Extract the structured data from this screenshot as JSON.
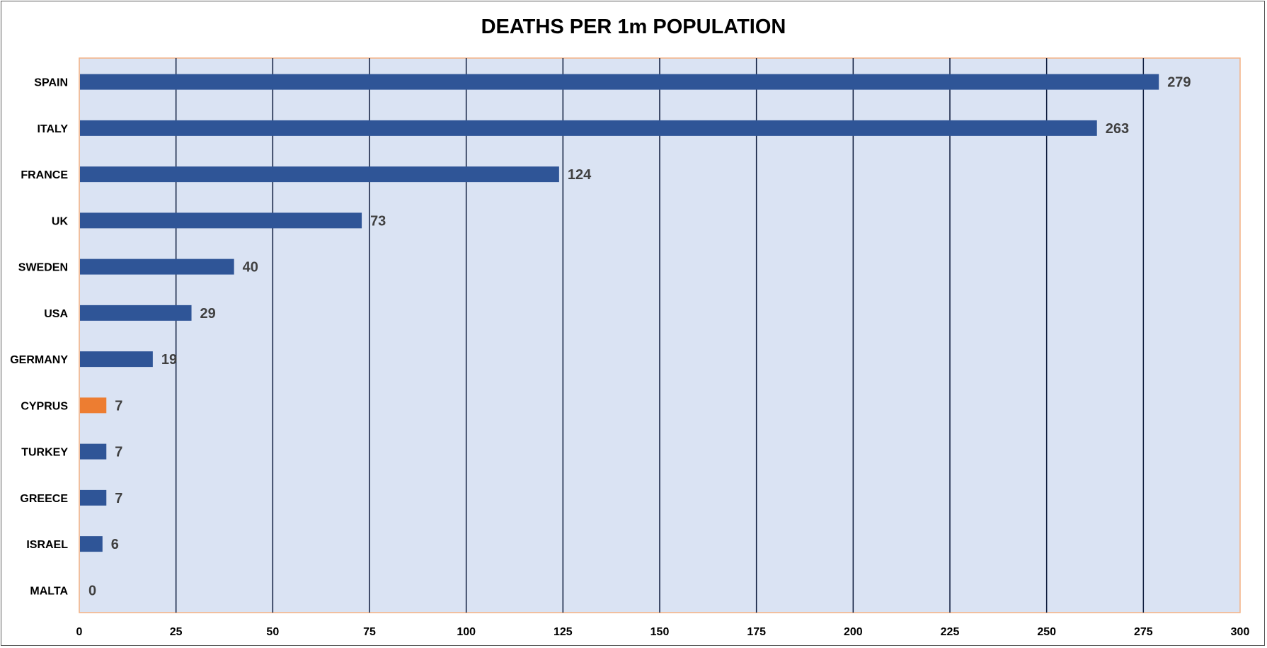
{
  "chart_data": {
    "type": "bar",
    "orientation": "horizontal",
    "title": "DEATHS PER 1m POPULATION",
    "xlabel": "",
    "ylabel": "",
    "categories": [
      "SPAIN",
      "ITALY",
      "FRANCE",
      "UK",
      "SWEDEN",
      "USA",
      "GERMANY",
      "CYPRUS",
      "TURKEY",
      "GREECE",
      "ISRAEL",
      "MALTA"
    ],
    "values": [
      279,
      263,
      124,
      73,
      40,
      29,
      19,
      7,
      7,
      7,
      6,
      0
    ],
    "data_labels": [
      "279",
      "263",
      "124",
      "73",
      "40",
      "29",
      "19",
      "7",
      "7",
      "7",
      "6",
      "0"
    ],
    "xlim": [
      0,
      300
    ],
    "xticks": [
      0,
      25,
      50,
      75,
      100,
      125,
      150,
      175,
      200,
      225,
      250,
      275,
      300
    ],
    "xtick_labels": [
      "0",
      "25",
      "50",
      "75",
      "100",
      "125",
      "150",
      "175",
      "200",
      "225",
      "250",
      "275",
      "300"
    ],
    "grid": "vertical",
    "legend": "none",
    "colors": {
      "bar": "#2f5597",
      "highlight_bar": "#ed7d31",
      "plot_background": "#dae3f3",
      "plot_border": "#f4b183",
      "gridline": "#0d1b3d"
    },
    "highlight_category": "CYPRUS"
  }
}
